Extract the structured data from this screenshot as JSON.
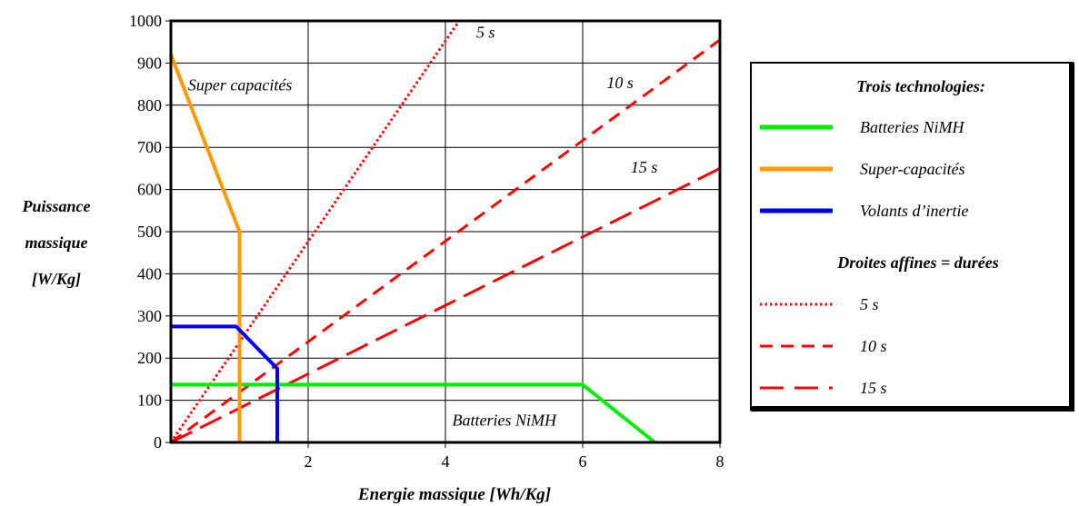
{
  "chart_data": {
    "type": "line",
    "xlabel": "Energie massique [Wh/Kg]",
    "ylabel": [
      "Puissance",
      "massique",
      "[W/Kg]"
    ],
    "xlim": [
      0,
      8
    ],
    "ylim": [
      0,
      1000
    ],
    "x_ticks": [
      2,
      4,
      6,
      8
    ],
    "y_ticks": [
      0,
      100,
      200,
      300,
      400,
      500,
      600,
      700,
      800,
      900,
      1000
    ],
    "grid": "x-major and y-major",
    "series": [
      {
        "name": "Batteries NiMH",
        "color": "#00ee00",
        "style": "solid",
        "points": [
          [
            0,
            137
          ],
          [
            6,
            137
          ],
          [
            7.05,
            0
          ]
        ]
      },
      {
        "name": "Super-capacités",
        "color": "#ff9900",
        "style": "solid",
        "points": [
          [
            0,
            920
          ],
          [
            1,
            500
          ],
          [
            1,
            0
          ]
        ]
      },
      {
        "name": "Volants d’inertie",
        "color": "#0000ee",
        "style": "solid",
        "points": [
          [
            0,
            275
          ],
          [
            0.95,
            275
          ],
          [
            1.55,
            175
          ],
          [
            1.55,
            0
          ]
        ]
      },
      {
        "name": "5 s",
        "color": "#ff0000",
        "style": "dotted",
        "points": [
          [
            0,
            0
          ],
          [
            4.2,
            1000
          ]
        ]
      },
      {
        "name": "10 s",
        "color": "#ff0000",
        "style": "dashed",
        "points": [
          [
            0,
            0
          ],
          [
            8,
            955
          ]
        ]
      },
      {
        "name": "15 s",
        "color": "#ff0000",
        "style": "longdash",
        "points": [
          [
            0,
            0
          ],
          [
            8,
            650
          ]
        ]
      }
    ],
    "annotations": [
      {
        "text": "5 s",
        "x": 4.45,
        "y": 960
      },
      {
        "text": "10 s",
        "x": 6.35,
        "y": 840
      },
      {
        "text": "15 s",
        "x": 6.7,
        "y": 640
      },
      {
        "text": "Super capacités",
        "x": 0.25,
        "y": 835
      },
      {
        "text": "Batteries NiMH",
        "x": 4.1,
        "y": 40
      }
    ],
    "legend": {
      "placement": "right",
      "title_1": "Trois technologies:",
      "title_2": "Droites affines = durées",
      "entries": [
        "Batteries NiMH",
        "Super-capacités",
        "Volants d’inertie",
        " 5 s",
        "10 s",
        "15 s"
      ]
    }
  }
}
